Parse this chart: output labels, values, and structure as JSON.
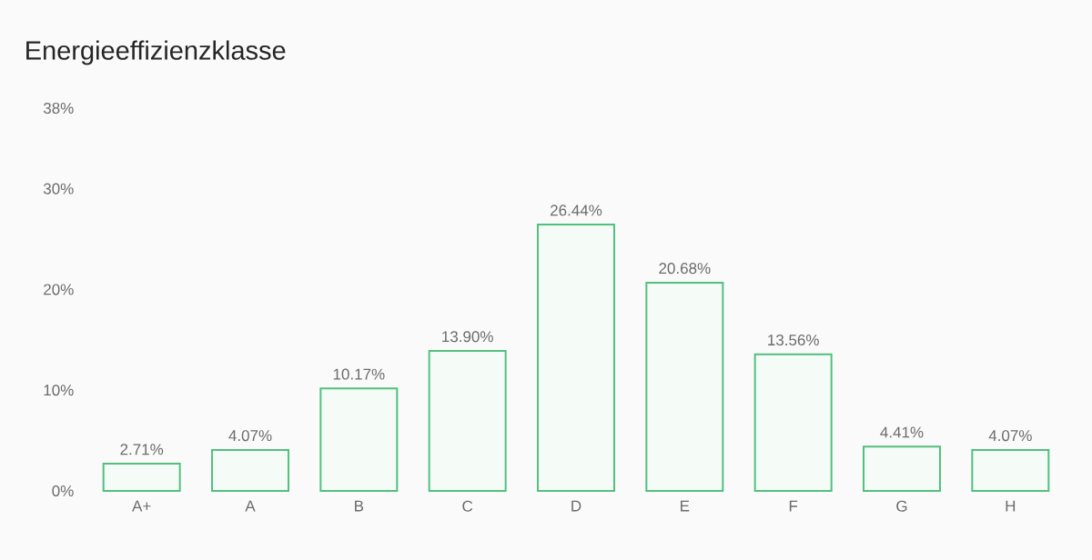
{
  "chart_data": {
    "type": "bar",
    "title": "Energieeffizienzklasse",
    "categories": [
      "A+",
      "A",
      "B",
      "C",
      "D",
      "E",
      "F",
      "G",
      "H"
    ],
    "values": [
      2.71,
      4.07,
      10.17,
      13.9,
      26.44,
      20.68,
      13.56,
      4.41,
      4.07
    ],
    "value_labels": [
      "2.71%",
      "4.07%",
      "10.17%",
      "13.90%",
      "26.44%",
      "20.68%",
      "13.56%",
      "4.41%",
      "4.07%"
    ],
    "color": "#52c07f",
    "ylim": [
      0,
      38
    ],
    "yticks": [
      {
        "value": 0,
        "label": "0%"
      },
      {
        "value": 10,
        "label": "10%"
      },
      {
        "value": 20,
        "label": "20%"
      },
      {
        "value": 30,
        "label": "30%"
      },
      {
        "value": 38,
        "label": "38%"
      }
    ],
    "grid": false
  }
}
